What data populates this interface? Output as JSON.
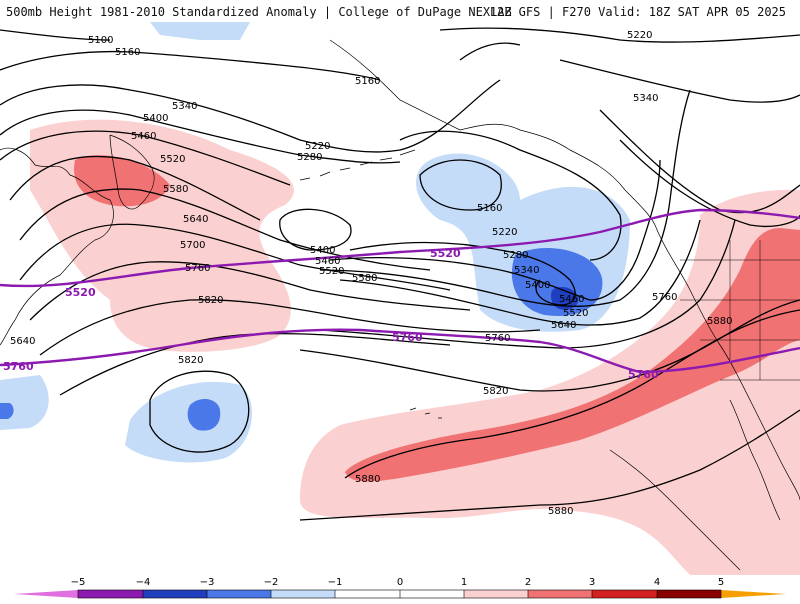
{
  "header": {
    "title": "500mb Height 1981-2010 Standardized Anomaly | College of DuPage NEXLAB",
    "model_info": "12Z GFS | F270 Valid: 18Z SAT APR 05 2025"
  },
  "colors": {
    "anom_neg5": "#e070e0",
    "anom_neg4": "#8c1ab0",
    "anom_neg3": "#1f3fbf",
    "anom_neg2": "#4a78e8",
    "anom_neg1": "#c4dcf8",
    "anom_pos1": "#fbd0d0",
    "anom_pos2": "#f07272",
    "anom_pos3": "#d42020",
    "anom_pos4": "#8a0000",
    "anom_pos5": "#f5a000",
    "highlight_contour": "#8c1ab0",
    "contour": "#000000"
  },
  "contours": {
    "labels": [
      "5100",
      "5160",
      "5160",
      "5220",
      "5340",
      "5340",
      "5400",
      "5460",
      "5520",
      "5580",
      "5640",
      "5700",
      "5760",
      "5820",
      "5820",
      "5220",
      "5280",
      "5160",
      "5220",
      "5280",
      "5340",
      "5400",
      "5460",
      "5520",
      "5640",
      "5400",
      "5460",
      "5520",
      "5580",
      "5760",
      "5880",
      "5760",
      "5820",
      "5880",
      "5880",
      "5640"
    ],
    "highlight_labels": [
      "5520",
      "5520",
      "5760",
      "5760",
      "5760"
    ]
  },
  "colorbar": {
    "ticks": [
      "−5",
      "−4",
      "−3",
      "−2",
      "−1",
      "0",
      "1",
      "2",
      "3",
      "4",
      "5"
    ]
  }
}
